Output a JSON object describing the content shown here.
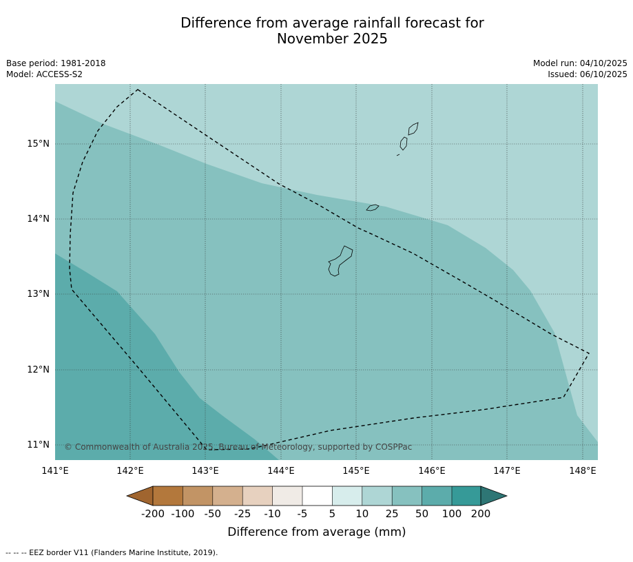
{
  "title": {
    "line1": "Difference from average rainfall forecast for",
    "line2": "November 2025"
  },
  "meta": {
    "base_period": "Base period: 1981-2018",
    "model": "Model: ACCESS-S2",
    "model_run": "Model run: 04/10/2025",
    "issued": "Issued: 06/10/2025"
  },
  "map": {
    "lon_labels": [
      "141°E",
      "142°E",
      "143°E",
      "144°E",
      "145°E",
      "146°E",
      "147°E",
      "148°E"
    ],
    "lat_labels": [
      "15°N",
      "14°N",
      "13°N",
      "12°N",
      "11°N"
    ],
    "copyright": "© Commonwealth of Australia 2025, Bureau of Meteorology, supported by COSPPac",
    "regions": [
      {
        "name": "rainfall 10 to 25 mm above average",
        "color": "#aed6d5"
      },
      {
        "name": "rainfall 25 to 50 mm above average",
        "color": "#86c1bf"
      },
      {
        "name": "rainfall 50 to 100 mm above average",
        "color": "#5cacab"
      }
    ]
  },
  "colorbar": {
    "title": "Difference from average (mm)",
    "labels": [
      "-200",
      "-100",
      "-50",
      "-25",
      "-10",
      "-5",
      "5",
      "10",
      "25",
      "50",
      "100",
      "200"
    ],
    "colors": [
      "#a0652f",
      "#b3783c",
      "#c29465",
      "#d4b08e",
      "#e7d1bf",
      "#f0ebe6",
      "#ffffff",
      "#d7edec",
      "#aed6d5",
      "#86c1bf",
      "#5cacab",
      "#369a98",
      "#2e7675"
    ]
  },
  "footnote": "--  --  -- EEZ border V11 (Flanders Marine Institute, 2019)."
}
